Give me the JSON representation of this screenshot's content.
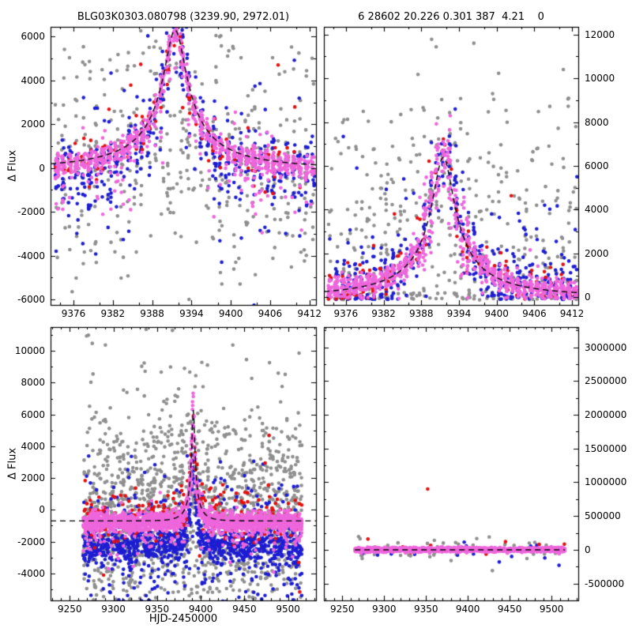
{
  "text": {
    "title_left": "BLG03K0303.080798 (3239.90, 2972.01)",
    "title_right": "6 28602 20.226 0.301 387  4.21    0",
    "xlabel": "HJD-2450000",
    "ylabel": "Δ Flux"
  },
  "colors": {
    "background": "#ffffff",
    "axis": "#000000",
    "model_curve": "#000000",
    "gray": "#8f8f8f",
    "blue": "#1d1dd2",
    "red": "#e41010",
    "magenta": "#ee66dc"
  },
  "chart_data": [
    {
      "id": "top_left",
      "type": "scatter",
      "title": "BLG03K0303.080798 (3239.90, 2972.01)",
      "xlabel": "",
      "ylabel": "Δ Flux",
      "xlim": [
        9372.5,
        9413.0
      ],
      "ylim": [
        -6250,
        6450
      ],
      "xticks": [
        9376,
        9382,
        9388,
        9394,
        9400,
        9406,
        9412
      ],
      "yticks": [
        -6000,
        -4000,
        -2000,
        0,
        2000,
        4000,
        6000
      ],
      "ytick_side": "left",
      "x_sub": 3,
      "y_sub": 2,
      "night": true,
      "data_xrange": [
        9373.0,
        9412.6
      ],
      "model": {
        "kind": "paczynski",
        "t0": 9391.5,
        "tE": 17.5,
        "u0": 0.1,
        "fs": 697,
        "baseline": 0,
        "dashed": true
      },
      "series": [
        {
          "name": "survey-gray",
          "color": "gray",
          "n": 430,
          "seed": 11,
          "center": 0,
          "follow": 0.5,
          "sigma": 2900,
          "out": 0.12,
          "outk": 1.7
        },
        {
          "name": "followup-blue",
          "color": "blue",
          "n": 520,
          "seed": 12,
          "center": -300,
          "follow": 1,
          "sigma": 720,
          "out": 0.12,
          "outk": 3.4,
          "neg": 0.1,
          "negamp": 1400
        },
        {
          "name": "followup-red",
          "color": "red",
          "n": 140,
          "seed": 13,
          "center": -150,
          "follow": 1,
          "sigma": 560,
          "out": 0.1,
          "outk": 4.0
        },
        {
          "name": "followup-magenta",
          "color": "magenta",
          "n": 950,
          "seed": 14,
          "center": -80,
          "follow": 1,
          "sigma": 260,
          "out": 0.06,
          "outk": 3.0,
          "neg": 0.12,
          "negamp": 1300
        }
      ]
    },
    {
      "id": "top_right",
      "type": "scatter",
      "title": "6 28602 20.226 0.301 387  4.21    0",
      "xlabel": "",
      "ylabel": "",
      "xlim": [
        9372.5,
        9413.0
      ],
      "ylim": [
        -350,
        12350
      ],
      "xticks": [
        9376,
        9382,
        9388,
        9394,
        9400,
        9406,
        9412
      ],
      "yticks": [
        0,
        2000,
        4000,
        6000,
        8000,
        10000,
        12000
      ],
      "ytick_side": "right",
      "x_sub": 3,
      "y_sub": 2,
      "night": true,
      "data_xrange": [
        9373.0,
        9412.6
      ],
      "model": {
        "kind": "paczynski",
        "t0": 9391.5,
        "tE": 17.5,
        "u0": 0.1,
        "fs": 700,
        "baseline": 60,
        "dashed": true
      },
      "series": [
        {
          "name": "survey-gray",
          "color": "gray",
          "n": 430,
          "seed": 21,
          "center": 2000,
          "follow": 0.5,
          "sigma": 3600,
          "out": 0.12,
          "outk": 1.6,
          "cliplo": -120,
          "clipj": 350
        },
        {
          "name": "followup-blue",
          "color": "blue",
          "n": 470,
          "seed": 22,
          "center": 120,
          "follow": 1,
          "sigma": 800,
          "out": 0.12,
          "outk": 3.2,
          "cliplo": -100,
          "clipj": 260
        },
        {
          "name": "followup-red",
          "color": "red",
          "n": 130,
          "seed": 23,
          "center": 100,
          "follow": 1,
          "sigma": 560,
          "out": 0.1,
          "outk": 4.0,
          "cliplo": -90,
          "clipj": 220
        },
        {
          "name": "followup-magenta",
          "color": "magenta",
          "n": 920,
          "seed": 24,
          "center": 50,
          "follow": 1,
          "sigma": 260,
          "out": 0.05,
          "outk": 3.0,
          "cliplo": -70,
          "clipj": 200,
          "pk": 900,
          "pkw": 4
        }
      ]
    },
    {
      "id": "bottom_left",
      "type": "scatter",
      "title": "",
      "xlabel": "HJD-2450000",
      "ylabel": "Δ Flux",
      "xlim": [
        9228,
        9532
      ],
      "ylim": [
        -5700,
        11500
      ],
      "xticks": [
        9250,
        9300,
        9350,
        9400,
        9450,
        9500
      ],
      "yticks": [
        -4000,
        -2000,
        0,
        2000,
        4000,
        6000,
        8000,
        10000
      ],
      "ytick_side": "left",
      "x_sub": 5,
      "y_sub": 2,
      "night": true,
      "data_xrange": [
        9265,
        9516
      ],
      "model": {
        "kind": "paczynski",
        "t0": 9391.5,
        "tE": 17.5,
        "u0": 0.1,
        "fs": 774,
        "baseline": -700,
        "dashed": true
      },
      "series": [
        {
          "name": "survey-gray",
          "color": "gray",
          "n": 1500,
          "seed": 31,
          "center": 400,
          "follow": 0.4,
          "sigma": 3300,
          "out": 0.12,
          "outk": 1.7
        },
        {
          "name": "followup-blue",
          "color": "blue",
          "n": 1150,
          "seed": 32,
          "center": -1600,
          "follow": 0.8,
          "sigma": 520,
          "out": 0.35,
          "outk": 4.2
        },
        {
          "name": "followup-red",
          "color": "red",
          "n": 270,
          "seed": 33,
          "center": 200,
          "follow": 0.9,
          "sigma": 780,
          "out": 0.1,
          "outk": 3.0
        },
        {
          "name": "followup-magenta",
          "color": "magenta",
          "n": 1900,
          "seed": 34,
          "center": -80,
          "follow": 1,
          "sigma": 270,
          "out": 0.05,
          "outk": 2.5,
          "neg": 0.08,
          "negamp": 1200,
          "pk": 1400,
          "pkw": 3
        }
      ]
    },
    {
      "id": "bottom_right",
      "type": "scatter",
      "title": "",
      "xlabel": "",
      "ylabel": "",
      "xlim": [
        9228,
        9532
      ],
      "ylim": [
        -750000,
        3300000
      ],
      "xticks": [
        9250,
        9300,
        9350,
        9400,
        9450,
        9500
      ],
      "yticks": [
        -500000,
        0,
        500000,
        1000000,
        1500000,
        2000000,
        2500000,
        3000000
      ],
      "ytick_side": "right",
      "x_sub": 5,
      "y_sub": 2,
      "night": true,
      "data_xrange": [
        9265,
        9516
      ],
      "model": {
        "kind": "flat",
        "t0": 9391.5,
        "tE": 17.5,
        "u0": 0.1,
        "fs": 0,
        "baseline": 0,
        "dashed": true
      },
      "series": [
        {
          "name": "survey-gray",
          "color": "gray",
          "n": 55,
          "seed": 41,
          "center": 0,
          "follow": 0,
          "sigma": 70000,
          "out": 0.1,
          "outk": 2.3,
          "extra_points": [
            [
              9380,
              -160000
            ],
            [
              9480,
              110000
            ],
            [
              9360,
              140000
            ]
          ]
        },
        {
          "name": "followup-blue",
          "color": "blue",
          "n": 22,
          "seed": 42,
          "center": 0,
          "follow": 0,
          "sigma": 55000,
          "extra_points": [
            [
              9509,
              -230000
            ],
            [
              9492,
              -120000
            ]
          ]
        },
        {
          "name": "followup-red",
          "color": "red",
          "n": 12,
          "seed": 43,
          "center": 20000,
          "follow": 0,
          "sigma": 60000,
          "extra_points": [
            [
              9352,
              900000
            ],
            [
              9445,
              120000
            ]
          ]
        },
        {
          "name": "followup-magenta",
          "color": "magenta",
          "n": 1500,
          "seed": 44,
          "center": 0,
          "follow": 0,
          "sigma": 16000
        }
      ]
    }
  ]
}
